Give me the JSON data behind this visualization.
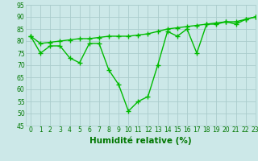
{
  "title": "",
  "xlabel": "Humidité relative (%)",
  "ylabel": "",
  "xlim": [
    -0.5,
    23
  ],
  "ylim": [
    45,
    95
  ],
  "yticks": [
    45,
    50,
    55,
    60,
    65,
    70,
    75,
    80,
    85,
    90,
    95
  ],
  "xticks": [
    0,
    1,
    2,
    3,
    4,
    5,
    6,
    7,
    8,
    9,
    10,
    11,
    12,
    13,
    14,
    15,
    16,
    17,
    18,
    19,
    20,
    21,
    22,
    23
  ],
  "background_color": "#cce8e8",
  "grid_color": "#aacccc",
  "line_color": "#00bb00",
  "line1_x": [
    0,
    1,
    2,
    3,
    4,
    5,
    6,
    7,
    8,
    9,
    10,
    11,
    12,
    13,
    14,
    15,
    16,
    17,
    18,
    19,
    20,
    21,
    22,
    23
  ],
  "line1_y": [
    82,
    75,
    78,
    78,
    73,
    71,
    79,
    79,
    68,
    62,
    51,
    55,
    57,
    70,
    84,
    82,
    85,
    75,
    87,
    87,
    88,
    87,
    89,
    90
  ],
  "line2_x": [
    0,
    1,
    2,
    3,
    4,
    5,
    6,
    7,
    8,
    9,
    10,
    11,
    12,
    13,
    14,
    15,
    16,
    17,
    18,
    19,
    20,
    21,
    22,
    23
  ],
  "line2_y": [
    82,
    79,
    79.5,
    80,
    80.5,
    81,
    81,
    81.5,
    82,
    82,
    82,
    82.5,
    83,
    84,
    85,
    85.5,
    86,
    86.5,
    87,
    87.5,
    88,
    88,
    89,
    90
  ],
  "font_color": "#007700",
  "tick_fontsize": 5.5,
  "xlabel_fontsize": 7.5,
  "marker": "+",
  "markersize": 4,
  "linewidth": 1.0
}
